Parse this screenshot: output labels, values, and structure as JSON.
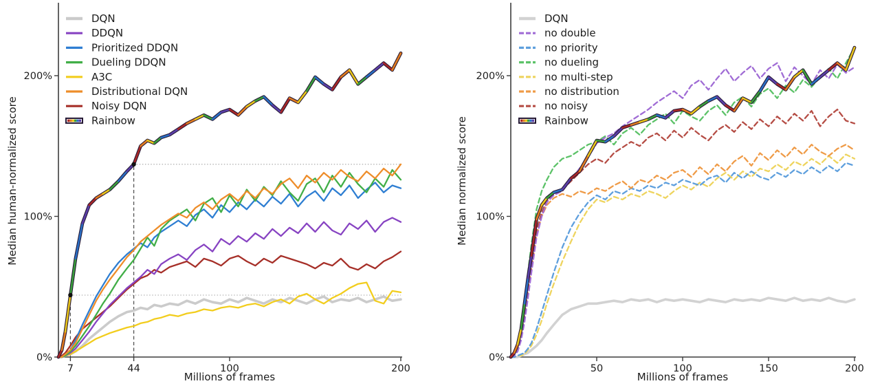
{
  "figure_title": "",
  "colors": {
    "axis": "#3c3c3c",
    "text": "#1c1c1c",
    "dotted_reference": "#a3a3a3",
    "dashed_reference": "#4a4a4a",
    "marker_dot": "#111111",
    "rainbow_outline": "#241733"
  },
  "chart_data": [
    {
      "id": "left",
      "type": "line",
      "title": "",
      "xlabel": "Millions of frames",
      "ylabel": "Median human-normalized score",
      "xlim": [
        0,
        200
      ],
      "ylim": [
        0,
        252
      ],
      "grid": false,
      "legend_position": "upper left inside",
      "xticks": [
        {
          "v": 7,
          "label": "7"
        },
        {
          "v": 44,
          "label": "44"
        },
        {
          "v": 100,
          "label": "100"
        },
        {
          "v": 200,
          "label": "200"
        }
      ],
      "yticks": [
        {
          "v": 0,
          "label": "0%"
        },
        {
          "v": 100,
          "label": "100%"
        },
        {
          "v": 200,
          "label": "200%"
        }
      ],
      "reference": {
        "vlines": [
          {
            "x": 7,
            "y0": 0,
            "y1": 44
          },
          {
            "x": 44,
            "y0": 0,
            "y1": 137
          }
        ],
        "hlines": [
          {
            "y": 44,
            "x0": 7,
            "x1": 200
          },
          {
            "y": 137,
            "x0": 44,
            "x1": 200
          }
        ],
        "points": [
          {
            "x": 7,
            "y": 44
          },
          {
            "x": 44,
            "y": 137
          }
        ]
      },
      "rainbow_colors": [
        "#a82828",
        "#e07b1f",
        "#e8c41a",
        "#3a9e3c",
        "#2b6fc4",
        "#5b3fa8"
      ],
      "x": [
        0,
        2,
        4,
        7,
        10,
        14,
        18,
        22,
        26,
        30,
        35,
        40,
        44,
        48,
        52,
        56,
        60,
        65,
        70,
        75,
        80,
        85,
        90,
        95,
        100,
        105,
        110,
        115,
        120,
        125,
        130,
        135,
        140,
        145,
        150,
        155,
        160,
        165,
        170,
        175,
        180,
        185,
        190,
        195,
        200
      ],
      "series": [
        {
          "name": "DQN",
          "color": "#cbcbcb",
          "style": "solid",
          "width": 3.6,
          "zorder": 1,
          "values": [
            0,
            0,
            1,
            2,
            4,
            8,
            13,
            17,
            21,
            25,
            29,
            32,
            33,
            35,
            34,
            37,
            36,
            38,
            37,
            40,
            38,
            41,
            39,
            38,
            41,
            39,
            42,
            40,
            38,
            41,
            39,
            42,
            40,
            38,
            41,
            43,
            39,
            41,
            40,
            42,
            39,
            41,
            43,
            40,
            41
          ]
        },
        {
          "name": "DDQN",
          "color": "#8743c2",
          "style": "solid",
          "width": 2.3,
          "zorder": 4,
          "values": [
            0,
            0,
            1,
            3,
            6,
            12,
            18,
            25,
            31,
            37,
            43,
            49,
            53,
            57,
            62,
            59,
            66,
            70,
            73,
            69,
            76,
            80,
            75,
            84,
            80,
            86,
            82,
            88,
            84,
            91,
            86,
            92,
            88,
            95,
            89,
            96,
            90,
            87,
            95,
            91,
            97,
            89,
            96,
            99,
            96
          ]
        },
        {
          "name": "Prioritized DDQN",
          "color": "#2e7ed2",
          "style": "solid",
          "width": 2.3,
          "zorder": 5,
          "values": [
            0,
            0,
            2,
            5,
            12,
            23,
            33,
            43,
            51,
            59,
            67,
            73,
            77,
            81,
            78,
            85,
            89,
            93,
            97,
            93,
            101,
            105,
            99,
            108,
            103,
            110,
            105,
            112,
            107,
            114,
            109,
            116,
            107,
            114,
            118,
            111,
            120,
            115,
            122,
            113,
            119,
            124,
            117,
            122,
            120
          ]
        },
        {
          "name": "Dueling DDQN",
          "color": "#41ae47",
          "style": "solid",
          "width": 2.3,
          "zorder": 6,
          "values": [
            0,
            0,
            1,
            4,
            8,
            15,
            22,
            30,
            38,
            45,
            55,
            63,
            69,
            77,
            85,
            79,
            91,
            97,
            101,
            105,
            97,
            109,
            113,
            103,
            115,
            107,
            119,
            111,
            121,
            115,
            125,
            117,
            111,
            123,
            127,
            117,
            129,
            121,
            131,
            123,
            117,
            127,
            121,
            133,
            126
          ]
        },
        {
          "name": "A3C",
          "color": "#f2cd1d",
          "style": "solid",
          "width": 2.3,
          "zorder": 2,
          "values": [
            0,
            0,
            1,
            2,
            4,
            7,
            10,
            13,
            15,
            17,
            19,
            21,
            22,
            24,
            25,
            27,
            28,
            30,
            29,
            31,
            32,
            34,
            33,
            35,
            36,
            35,
            37,
            38,
            36,
            39,
            41,
            38,
            43,
            45,
            41,
            38,
            42,
            45,
            49,
            52,
            53,
            40,
            38,
            47,
            46
          ]
        },
        {
          "name": "Distributional DQN",
          "color": "#ee8d2a",
          "style": "solid",
          "width": 2.3,
          "zorder": 7,
          "values": [
            0,
            0,
            2,
            5,
            10,
            20,
            30,
            40,
            48,
            55,
            63,
            71,
            76,
            82,
            86,
            90,
            94,
            98,
            102,
            99,
            106,
            110,
            105,
            112,
            116,
            111,
            118,
            113,
            120,
            116,
            123,
            127,
            120,
            129,
            124,
            131,
            126,
            133,
            128,
            125,
            132,
            127,
            134,
            129,
            137
          ]
        },
        {
          "name": "Noisy DQN",
          "color": "#a62f28",
          "style": "solid",
          "width": 2.3,
          "zorder": 3,
          "values": [
            0,
            1,
            3,
            8,
            14,
            20,
            24,
            28,
            32,
            36,
            42,
            48,
            52,
            56,
            58,
            62,
            60,
            64,
            66,
            68,
            64,
            70,
            68,
            65,
            70,
            72,
            68,
            65,
            70,
            67,
            72,
            70,
            68,
            66,
            63,
            67,
            65,
            70,
            64,
            62,
            66,
            63,
            68,
            71,
            75
          ]
        },
        {
          "name": "Rainbow",
          "color": "rainbow",
          "style": "rainbow",
          "width": 2.7,
          "zorder": 8,
          "values": [
            0,
            5,
            18,
            44,
            70,
            95,
            108,
            113,
            116,
            119,
            125,
            132,
            137,
            150,
            154,
            152,
            156,
            158,
            162,
            166,
            169,
            172,
            169,
            174,
            176,
            172,
            178,
            182,
            185,
            179,
            174,
            184,
            181,
            189,
            199,
            194,
            190,
            199,
            204,
            194,
            199,
            204,
            209,
            204,
            216
          ]
        }
      ]
    },
    {
      "id": "right",
      "type": "line",
      "title": "",
      "xlabel": "Millions of frames",
      "ylabel": "Median normalized score",
      "xlim": [
        0,
        200
      ],
      "ylim": [
        0,
        252
      ],
      "grid": false,
      "legend_position": "upper left inside",
      "xticks": [
        {
          "v": 50,
          "label": "50"
        },
        {
          "v": 100,
          "label": "100"
        },
        {
          "v": 150,
          "label": "150"
        },
        {
          "v": 200,
          "label": "200"
        }
      ],
      "yticks": [
        {
          "v": 0,
          "label": "0%"
        },
        {
          "v": 100,
          "label": "100%"
        },
        {
          "v": 200,
          "label": "200%"
        }
      ],
      "reference": {
        "vlines": [],
        "hlines": [],
        "points": []
      },
      "rainbow_colors": [
        "#a82828",
        "#e07b1f",
        "#e8c41a",
        "#3a9e3c",
        "#2b6fc4",
        "#5b3fa8"
      ],
      "x": [
        0,
        2,
        4,
        6,
        8,
        10,
        12,
        15,
        18,
        21,
        25,
        30,
        35,
        40,
        45,
        50,
        55,
        60,
        65,
        70,
        75,
        80,
        85,
        90,
        95,
        100,
        105,
        110,
        115,
        120,
        125,
        130,
        135,
        140,
        145,
        150,
        155,
        160,
        165,
        170,
        175,
        180,
        185,
        190,
        195,
        200
      ],
      "series": [
        {
          "name": "DQN",
          "color": "#d2d2d2",
          "style": "solid",
          "width": 3.6,
          "zorder": 1,
          "values": [
            0,
            0,
            0,
            1,
            2,
            3,
            5,
            8,
            12,
            17,
            23,
            30,
            34,
            36,
            38,
            38,
            39,
            40,
            39,
            41,
            40,
            41,
            39,
            41,
            40,
            41,
            40,
            39,
            41,
            40,
            39,
            41,
            40,
            41,
            40,
            42,
            41,
            40,
            42,
            40,
            41,
            40,
            42,
            40,
            39,
            41
          ]
        },
        {
          "name": "no double",
          "color": "#a06cd5",
          "style": "dashed",
          "width": 2.3,
          "zorder": 7,
          "values": [
            0,
            1,
            4,
            12,
            25,
            42,
            60,
            85,
            100,
            110,
            115,
            118,
            126,
            134,
            142,
            152,
            156,
            159,
            164,
            168,
            172,
            176,
            181,
            185,
            189,
            184,
            193,
            197,
            190,
            198,
            205,
            196,
            202,
            207,
            198,
            205,
            209,
            196,
            206,
            200,
            194,
            204,
            198,
            208,
            202,
            206
          ]
        },
        {
          "name": "no priority",
          "color": "#5e9fdd",
          "style": "dashed",
          "width": 2.3,
          "zorder": 3,
          "values": [
            0,
            0,
            1,
            2,
            3,
            6,
            10,
            20,
            32,
            44,
            60,
            78,
            92,
            102,
            110,
            115,
            112,
            118,
            116,
            120,
            118,
            122,
            120,
            124,
            122,
            126,
            124,
            122,
            127,
            129,
            124,
            131,
            127,
            132,
            128,
            126,
            131,
            128,
            133,
            130,
            135,
            131,
            136,
            132,
            138,
            136
          ]
        },
        {
          "name": "no dueling",
          "color": "#5cc268",
          "style": "dashed",
          "width": 2.3,
          "zorder": 6,
          "values": [
            0,
            2,
            8,
            20,
            38,
            60,
            80,
            105,
            118,
            126,
            135,
            141,
            143,
            147,
            151,
            153,
            157,
            151,
            159,
            163,
            158,
            165,
            169,
            173,
            166,
            175,
            171,
            168,
            175,
            179,
            172,
            181,
            185,
            178,
            187,
            191,
            184,
            193,
            188,
            197,
            192,
            199,
            205,
            198,
            209,
            220
          ]
        },
        {
          "name": "no multi-step",
          "color": "#eed45e",
          "style": "dashed",
          "width": 2.3,
          "zorder": 2,
          "values": [
            0,
            0,
            1,
            1,
            2,
            5,
            8,
            16,
            26,
            38,
            52,
            68,
            82,
            95,
            105,
            112,
            110,
            114,
            112,
            116,
            114,
            118,
            116,
            113,
            118,
            122,
            119,
            124,
            121,
            127,
            131,
            126,
            132,
            128,
            134,
            132,
            137,
            133,
            139,
            136,
            141,
            137,
            143,
            138,
            144,
            141
          ]
        },
        {
          "name": "no distribution",
          "color": "#ef9b47",
          "style": "dashed",
          "width": 2.3,
          "zorder": 4,
          "values": [
            0,
            2,
            6,
            16,
            30,
            47,
            62,
            86,
            100,
            108,
            113,
            116,
            114,
            118,
            116,
            120,
            118,
            122,
            125,
            120,
            126,
            124,
            129,
            126,
            131,
            133,
            128,
            135,
            130,
            137,
            132,
            139,
            143,
            136,
            145,
            140,
            147,
            142,
            149,
            144,
            151,
            146,
            143,
            148,
            151,
            147
          ]
        },
        {
          "name": "no noisy",
          "color": "#b54d45",
          "style": "dashed",
          "width": 2.3,
          "zorder": 5,
          "values": [
            0,
            2,
            7,
            17,
            32,
            50,
            66,
            90,
            103,
            111,
            116,
            119,
            125,
            131,
            137,
            141,
            138,
            145,
            149,
            153,
            150,
            156,
            159,
            154,
            161,
            156,
            163,
            158,
            154,
            161,
            165,
            160,
            167,
            162,
            169,
            164,
            171,
            166,
            173,
            168,
            175,
            164,
            171,
            176,
            168,
            166
          ]
        },
        {
          "name": "Rainbow",
          "color": "rainbow",
          "style": "rainbow",
          "width": 2.7,
          "zorder": 8,
          "values": [
            0,
            3,
            9,
            20,
            38,
            56,
            72,
            98,
            108,
            113,
            117,
            119,
            127,
            132,
            143,
            154,
            153,
            157,
            163,
            165,
            167,
            169,
            172,
            170,
            175,
            176,
            173,
            178,
            182,
            185,
            179,
            175,
            184,
            181,
            189,
            199,
            194,
            190,
            199,
            204,
            194,
            199,
            204,
            209,
            204,
            220
          ]
        }
      ]
    }
  ]
}
